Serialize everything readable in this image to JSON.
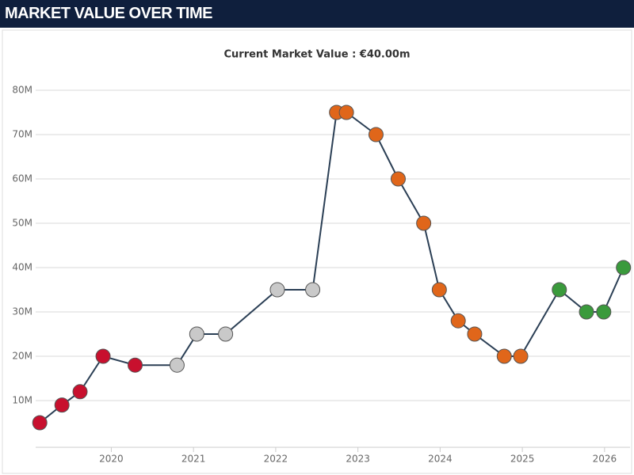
{
  "header": {
    "title": "MARKET VALUE OVER TIME"
  },
  "chart_data": {
    "type": "line",
    "title": "Current Market Value : €40.00m",
    "x": [
      2019.13,
      2019.4,
      2019.62,
      2019.9,
      2020.29,
      2020.8,
      2021.04,
      2021.39,
      2022.02,
      2022.45,
      2022.74,
      2022.86,
      2023.22,
      2023.49,
      2023.8,
      2023.99,
      2024.22,
      2024.42,
      2024.78,
      2024.98,
      2025.45,
      2025.78,
      2025.99,
      2026.23
    ],
    "values": [
      5,
      9,
      12,
      20,
      18,
      18,
      25,
      25,
      35,
      35,
      75,
      75,
      70,
      60,
      50,
      35,
      28,
      25,
      20,
      20,
      35,
      30,
      30,
      40
    ],
    "color": "#2b3f55",
    "marker_colors": [
      "#c8102e",
      "#c8102e",
      "#c8102e",
      "#c8102e",
      "#c8102e",
      "#c9c9c9",
      "#c9c9c9",
      "#c9c9c9",
      "#c9c9c9",
      "#c9c9c9",
      "#e0661a",
      "#e0661a",
      "#e0661a",
      "#e0661a",
      "#e0661a",
      "#e0661a",
      "#e0661a",
      "#e0661a",
      "#e0661a",
      "#e0661a",
      "#3a9a3c",
      "#3a9a3c",
      "#3a9a3c",
      "#3a9a3c"
    ],
    "xlim": [
      2019.08,
      2026.31
    ],
    "xticks": [
      2020,
      2021,
      2022,
      2023,
      2024,
      2025,
      2026
    ],
    "ylim": [
      0,
      82
    ],
    "yticks": [
      {
        "value": 10,
        "label": "10M"
      },
      {
        "value": 20,
        "label": "20M"
      },
      {
        "value": 30,
        "label": "30M"
      },
      {
        "value": 40,
        "label": "40M"
      },
      {
        "value": 50,
        "label": "50M"
      },
      {
        "value": 60,
        "label": "60M"
      },
      {
        "value": 70,
        "label": "70M"
      },
      {
        "value": 80,
        "label": "80M"
      }
    ],
    "grid": true
  }
}
